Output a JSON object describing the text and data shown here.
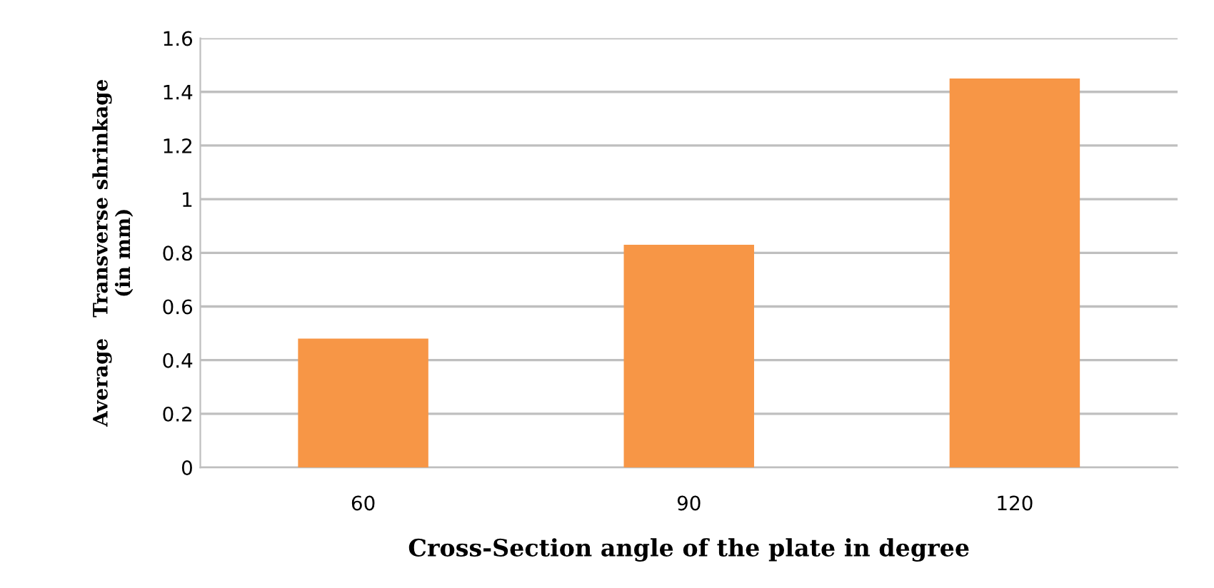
{
  "chart_data": {
    "type": "bar",
    "xlabel": "Cross-Section angle of the plate in degree",
    "ylabel": "Average   Transverse shrinkage\n(in mm)",
    "categories": [
      "60",
      "90",
      "120"
    ],
    "values": [
      0.48,
      0.83,
      1.45
    ],
    "color": "#f79646",
    "ylim": [
      0,
      1.6
    ],
    "yticks": [
      0,
      0.2,
      0.4,
      0.6,
      0.8,
      1,
      1.2,
      1.4,
      1.6
    ],
    "grid": "y",
    "legend": false
  }
}
